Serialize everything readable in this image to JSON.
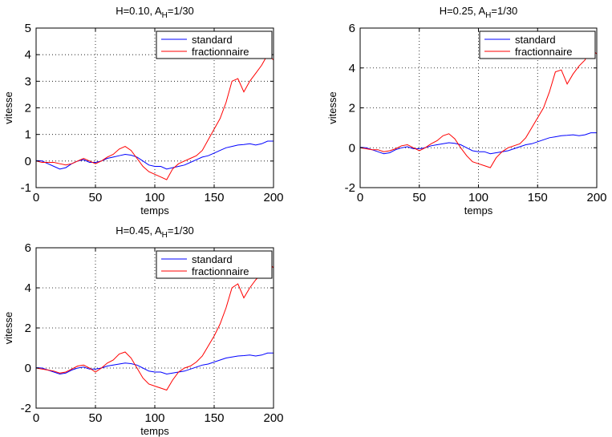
{
  "chart_data": [
    {
      "type": "line",
      "title_main": "H=0.10, A",
      "title_sub": "H",
      "title_tail": "=1/30",
      "xlabel": "temps",
      "ylabel": "vitesse",
      "xlim": [
        0,
        200
      ],
      "ylim": [
        -1,
        5
      ],
      "xticks": [
        0,
        50,
        100,
        150,
        200
      ],
      "yticks": [
        -1,
        0,
        1,
        2,
        3,
        4,
        5
      ],
      "grid": true,
      "legend_position": "top-right",
      "series": [
        {
          "name": "standard",
          "color": "#0000ff",
          "x": [
            0,
            5,
            10,
            15,
            20,
            25,
            30,
            35,
            40,
            45,
            50,
            55,
            60,
            65,
            70,
            75,
            80,
            85,
            90,
            95,
            100,
            105,
            110,
            115,
            120,
            125,
            130,
            135,
            140,
            145,
            150,
            155,
            160,
            165,
            170,
            175,
            180,
            185,
            190,
            195,
            200
          ],
          "y": [
            0.02,
            0.0,
            -0.1,
            -0.2,
            -0.3,
            -0.25,
            -0.1,
            0.0,
            0.05,
            -0.05,
            -0.05,
            0.0,
            0.1,
            0.15,
            0.2,
            0.25,
            0.22,
            0.15,
            0.0,
            -0.15,
            -0.2,
            -0.2,
            -0.3,
            -0.25,
            -0.2,
            -0.15,
            -0.05,
            0.05,
            0.15,
            0.2,
            0.3,
            0.4,
            0.5,
            0.55,
            0.6,
            0.62,
            0.65,
            0.6,
            0.65,
            0.75,
            0.75
          ]
        },
        {
          "name": "fractionnaire",
          "color": "#ff0000",
          "x": [
            0,
            5,
            10,
            15,
            20,
            25,
            30,
            35,
            40,
            45,
            50,
            55,
            60,
            65,
            70,
            75,
            80,
            85,
            90,
            95,
            100,
            105,
            110,
            115,
            120,
            125,
            130,
            135,
            140,
            145,
            150,
            155,
            160,
            165,
            170,
            175,
            180,
            185,
            190,
            195,
            200
          ],
          "y": [
            0.0,
            -0.05,
            -0.05,
            -0.05,
            -0.1,
            -0.15,
            -0.1,
            0.0,
            0.1,
            0.0,
            -0.1,
            0.0,
            0.15,
            0.25,
            0.45,
            0.55,
            0.4,
            0.1,
            -0.2,
            -0.4,
            -0.5,
            -0.6,
            -0.7,
            -0.3,
            -0.1,
            0.0,
            0.1,
            0.2,
            0.4,
            0.8,
            1.2,
            1.6,
            2.2,
            3.0,
            3.1,
            2.6,
            3.0,
            3.3,
            3.6,
            4.0,
            3.8
          ]
        }
      ]
    },
    {
      "type": "line",
      "title_main": "H=0.25, A",
      "title_sub": "H",
      "title_tail": "=1/30",
      "xlabel": "temps",
      "ylabel": "vitesse",
      "xlim": [
        0,
        200
      ],
      "ylim": [
        -2,
        6
      ],
      "xticks": [
        0,
        50,
        100,
        150,
        200
      ],
      "yticks": [
        -2,
        0,
        2,
        4,
        6
      ],
      "grid": true,
      "legend_position": "top-right",
      "series": [
        {
          "name": "standard",
          "color": "#0000ff",
          "x": [
            0,
            5,
            10,
            15,
            20,
            25,
            30,
            35,
            40,
            45,
            50,
            55,
            60,
            65,
            70,
            75,
            80,
            85,
            90,
            95,
            100,
            105,
            110,
            115,
            120,
            125,
            130,
            135,
            140,
            145,
            150,
            155,
            160,
            165,
            170,
            175,
            180,
            185,
            190,
            195,
            200
          ],
          "y": [
            0.02,
            0.0,
            -0.1,
            -0.2,
            -0.3,
            -0.25,
            -0.1,
            0.0,
            0.05,
            -0.05,
            -0.05,
            0.0,
            0.1,
            0.15,
            0.2,
            0.25,
            0.22,
            0.15,
            0.0,
            -0.15,
            -0.2,
            -0.2,
            -0.3,
            -0.25,
            -0.2,
            -0.15,
            -0.05,
            0.05,
            0.15,
            0.2,
            0.3,
            0.4,
            0.5,
            0.55,
            0.6,
            0.62,
            0.65,
            0.6,
            0.65,
            0.75,
            0.75
          ]
        },
        {
          "name": "fractionnaire",
          "color": "#ff0000",
          "x": [
            0,
            5,
            10,
            15,
            20,
            25,
            30,
            35,
            40,
            45,
            50,
            55,
            60,
            65,
            70,
            75,
            80,
            85,
            90,
            95,
            100,
            105,
            110,
            115,
            120,
            125,
            130,
            135,
            140,
            145,
            150,
            155,
            160,
            165,
            170,
            175,
            180,
            185,
            190,
            195,
            200
          ],
          "y": [
            0.0,
            -0.05,
            -0.1,
            -0.1,
            -0.2,
            -0.15,
            -0.05,
            0.1,
            0.15,
            0.0,
            -0.15,
            0.0,
            0.2,
            0.35,
            0.6,
            0.7,
            0.45,
            0.0,
            -0.4,
            -0.7,
            -0.8,
            -0.9,
            -1.0,
            -0.5,
            -0.2,
            0.0,
            0.1,
            0.2,
            0.5,
            1.0,
            1.5,
            2.0,
            2.8,
            3.8,
            3.9,
            3.2,
            3.7,
            4.1,
            4.4,
            5.0,
            4.7
          ]
        }
      ]
    },
    {
      "type": "line",
      "title_main": "H=0.45, A",
      "title_sub": "H",
      "title_tail": "=1/30",
      "xlabel": "temps",
      "ylabel": "vitesse",
      "xlim": [
        0,
        200
      ],
      "ylim": [
        -2,
        6
      ],
      "xticks": [
        0,
        50,
        100,
        150,
        200
      ],
      "yticks": [
        -2,
        0,
        2,
        4,
        6
      ],
      "grid": true,
      "legend_position": "top-right",
      "series": [
        {
          "name": "standard",
          "color": "#0000ff",
          "x": [
            0,
            5,
            10,
            15,
            20,
            25,
            30,
            35,
            40,
            45,
            50,
            55,
            60,
            65,
            70,
            75,
            80,
            85,
            90,
            95,
            100,
            105,
            110,
            115,
            120,
            125,
            130,
            135,
            140,
            145,
            150,
            155,
            160,
            165,
            170,
            175,
            180,
            185,
            190,
            195,
            200
          ],
          "y": [
            0.02,
            0.0,
            -0.1,
            -0.2,
            -0.3,
            -0.25,
            -0.1,
            0.0,
            0.05,
            -0.05,
            -0.05,
            0.0,
            0.1,
            0.15,
            0.2,
            0.25,
            0.22,
            0.15,
            0.0,
            -0.15,
            -0.2,
            -0.2,
            -0.3,
            -0.25,
            -0.2,
            -0.15,
            -0.05,
            0.05,
            0.15,
            0.2,
            0.3,
            0.4,
            0.5,
            0.55,
            0.6,
            0.62,
            0.65,
            0.6,
            0.65,
            0.75,
            0.75
          ]
        },
        {
          "name": "fractionnaire",
          "color": "#ff0000",
          "x": [
            0,
            5,
            10,
            15,
            20,
            25,
            30,
            35,
            40,
            45,
            50,
            55,
            60,
            65,
            70,
            75,
            80,
            85,
            90,
            95,
            100,
            105,
            110,
            115,
            120,
            125,
            130,
            135,
            140,
            145,
            150,
            155,
            160,
            165,
            170,
            175,
            180,
            185,
            190,
            195,
            200
          ],
          "y": [
            0.0,
            -0.05,
            -0.1,
            -0.15,
            -0.25,
            -0.2,
            -0.05,
            0.1,
            0.15,
            0.0,
            -0.2,
            0.0,
            0.25,
            0.4,
            0.7,
            0.8,
            0.5,
            0.0,
            -0.5,
            -0.8,
            -0.9,
            -1.0,
            -1.1,
            -0.6,
            -0.2,
            0.0,
            0.1,
            0.3,
            0.6,
            1.1,
            1.6,
            2.2,
            3.0,
            4.0,
            4.2,
            3.5,
            4.0,
            4.4,
            4.7,
            5.3,
            5.0
          ]
        }
      ]
    }
  ]
}
